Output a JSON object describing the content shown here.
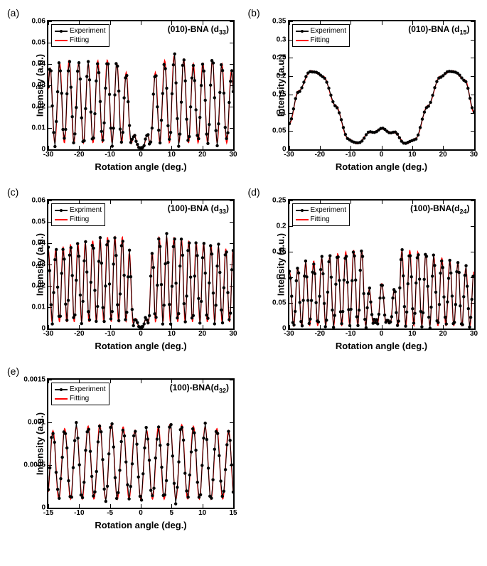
{
  "global": {
    "experiment_color": "#000000",
    "fitting_color": "#ff0000",
    "marker_size": 2.2,
    "line_width": 1.4,
    "axis_label_fontsize": 13,
    "tick_fontsize": 10,
    "legend_fontsize": 10,
    "title_fontsize": 12,
    "panel_label_fontsize": 14,
    "background_color": "#ffffff",
    "border_color": "#000000"
  },
  "panels": [
    {
      "id": "a",
      "label": "(a)",
      "title": "(010)-BNA (d",
      "title_sub": "33",
      "title_suffix": ")",
      "legend": [
        "Experiment",
        "Fitting"
      ],
      "xlabel": "Rotation angle (deg.)",
      "ylabel": "Intensity (a.u.)",
      "xlim": [
        -30,
        30
      ],
      "ylim": [
        0,
        0.06
      ],
      "xticks": [
        -30,
        -20,
        -10,
        0,
        10,
        20,
        30
      ],
      "yticks": [
        0,
        0.01,
        0.02,
        0.03,
        0.04,
        0.05,
        0.06
      ],
      "curve_type": "maker-fringe-sparse",
      "envelope_peaks": [
        [
          -30,
          0.038
        ],
        [
          -24,
          0.042
        ],
        [
          -18,
          0.04
        ],
        [
          -12,
          0.042
        ],
        [
          -6,
          0.04
        ],
        [
          0,
          0.005
        ],
        [
          6,
          0.04
        ],
        [
          10,
          0.044
        ],
        [
          18,
          0.04
        ],
        [
          24,
          0.042
        ],
        [
          30,
          0.037
        ]
      ],
      "fringe_period": 3.1
    },
    {
      "id": "b",
      "label": "(b)",
      "title": "(010)-BNA (d",
      "title_sub": "15",
      "title_suffix": ")",
      "legend": [
        "Experiment",
        "Fitting"
      ],
      "xlabel": "Rotation angle (deg.)",
      "ylabel": "Intensity (a.u.)",
      "xlim": [
        -30,
        30
      ],
      "ylim": [
        0,
        0.35
      ],
      "xticks": [
        -30,
        -20,
        -10,
        0,
        10,
        20,
        30
      ],
      "yticks": [
        0,
        0.05,
        0.1,
        0.15,
        0.2,
        0.25,
        0.3,
        0.35
      ],
      "curve_type": "broad-lobes",
      "shape_points": [
        [
          -30,
          0.07
        ],
        [
          -27,
          0.16
        ],
        [
          -23,
          0.215
        ],
        [
          -19,
          0.2
        ],
        [
          -15,
          0.12
        ],
        [
          -11,
          0.03
        ],
        [
          -8,
          0.015
        ],
        [
          -4,
          0.045
        ],
        [
          0,
          0.055
        ],
        [
          4,
          0.045
        ],
        [
          8,
          0.015
        ],
        [
          11,
          0.03
        ],
        [
          15,
          0.12
        ],
        [
          19,
          0.2
        ],
        [
          23,
          0.215
        ],
        [
          27,
          0.19
        ],
        [
          30,
          0.1
        ]
      ]
    },
    {
      "id": "c",
      "label": "(c)",
      "title": "(100)-BNA (d",
      "title_sub": "33",
      "title_suffix": ")",
      "legend": [
        "Expriment",
        "Fitting"
      ],
      "xlabel": "Rotation angle (deg.)",
      "ylabel": "Intensity (a.u.)",
      "xlim": [
        -30,
        30
      ],
      "ylim": [
        0,
        0.06
      ],
      "xticks": [
        -30,
        -20,
        -10,
        0,
        10,
        20,
        30
      ],
      "yticks": [
        0,
        0.01,
        0.02,
        0.03,
        0.04,
        0.05,
        0.06
      ],
      "curve_type": "maker-fringe-dense",
      "envelope_peaks": [
        [
          -30,
          0.037
        ],
        [
          -20,
          0.04
        ],
        [
          -10,
          0.043
        ],
        [
          -5,
          0.043
        ],
        [
          0,
          0.004
        ],
        [
          5,
          0.043
        ],
        [
          10,
          0.043
        ],
        [
          20,
          0.04
        ],
        [
          30,
          0.037
        ]
      ],
      "fringe_period": 2.4
    },
    {
      "id": "d",
      "label": "(d)",
      "title": "(100)-BNA(d",
      "title_sub": "24",
      "title_suffix": ")",
      "legend": [
        "Experiment",
        "Fitting"
      ],
      "xlabel": "Rotation angle (deg.)",
      "ylabel": "Intensity (a.u.)",
      "xlim": [
        -30,
        30
      ],
      "ylim": [
        0,
        0.25
      ],
      "xticks": [
        -30,
        -20,
        -10,
        0,
        10,
        20,
        30
      ],
      "yticks": [
        0,
        0.05,
        0.1,
        0.15,
        0.2,
        0.25
      ],
      "curve_type": "maker-fringe-envelope",
      "envelope_peaks": [
        [
          -30,
          0.11
        ],
        [
          -24,
          0.13
        ],
        [
          -18,
          0.14
        ],
        [
          -12,
          0.15
        ],
        [
          -7,
          0.155
        ],
        [
          -3,
          0.085
        ],
        [
          0,
          0.005
        ],
        [
          3,
          0.085
        ],
        [
          7,
          0.155
        ],
        [
          12,
          0.15
        ],
        [
          18,
          0.14
        ],
        [
          24,
          0.13
        ],
        [
          30,
          0.11
        ]
      ],
      "fringe_period": 2.6
    },
    {
      "id": "e",
      "label": "(e)",
      "title": "(100)-BNA(d",
      "title_sub": "32",
      "title_suffix": ")",
      "legend": [
        "Experiment",
        "Fitting"
      ],
      "xlabel": "Rotation angle (deg.)",
      "ylabel": "Intensity (a.u.)",
      "xlim": [
        -15,
        15
      ],
      "ylim": [
        0,
        0.0015
      ],
      "xticks": [
        -15,
        -10,
        -5,
        0,
        5,
        10,
        15
      ],
      "yticks": [
        0,
        0.0005,
        0.001,
        0.0015
      ],
      "curve_type": "maker-fringe-flat",
      "envelope_peaks": [
        [
          -15,
          0.0009
        ],
        [
          -10,
          0.00095
        ],
        [
          -5,
          0.00098
        ],
        [
          0,
          0.0009
        ],
        [
          5,
          0.00098
        ],
        [
          10,
          0.00095
        ],
        [
          15,
          0.0009
        ]
      ],
      "fringe_period": 1.9
    }
  ]
}
